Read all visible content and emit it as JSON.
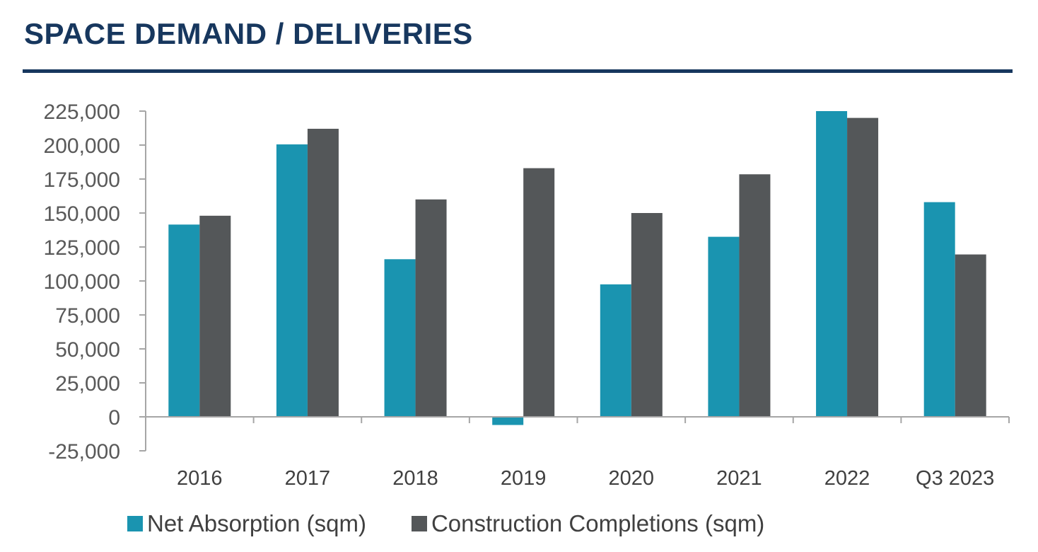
{
  "header": {
    "title": "SPACE DEMAND / DELIVERIES"
  },
  "chart_data": {
    "type": "bar",
    "title": "",
    "xlabel": "",
    "ylabel": "",
    "categories": [
      "2016",
      "2017",
      "2018",
      "2019",
      "2020",
      "2021",
      "2022",
      "Q3 2023"
    ],
    "series": [
      {
        "name": "Net Absorption (sqm)",
        "color": "#1a94b0",
        "values": [
          141500,
          200500,
          116000,
          -6000,
          97500,
          132500,
          225000,
          158000
        ]
      },
      {
        "name": "Construction Completions (sqm)",
        "color": "#545759",
        "values": [
          148000,
          212000,
          160000,
          183000,
          150000,
          178500,
          220000,
          119500
        ]
      }
    ],
    "ylim": [
      -25000,
      225000
    ],
    "yticks": [
      225000,
      200000,
      175000,
      150000,
      125000,
      100000,
      75000,
      50000,
      25000,
      0,
      -25000
    ],
    "ytick_labels": [
      "225,000",
      "200,000",
      "175,000",
      "150,000",
      "125,000",
      "100,000",
      "75,000",
      "50,000",
      "25,000",
      "0",
      "-25,000"
    ],
    "grid": false,
    "legend_position": "bottom"
  },
  "colors": {
    "title": "#17375e",
    "axis": "#a6a6a6"
  }
}
